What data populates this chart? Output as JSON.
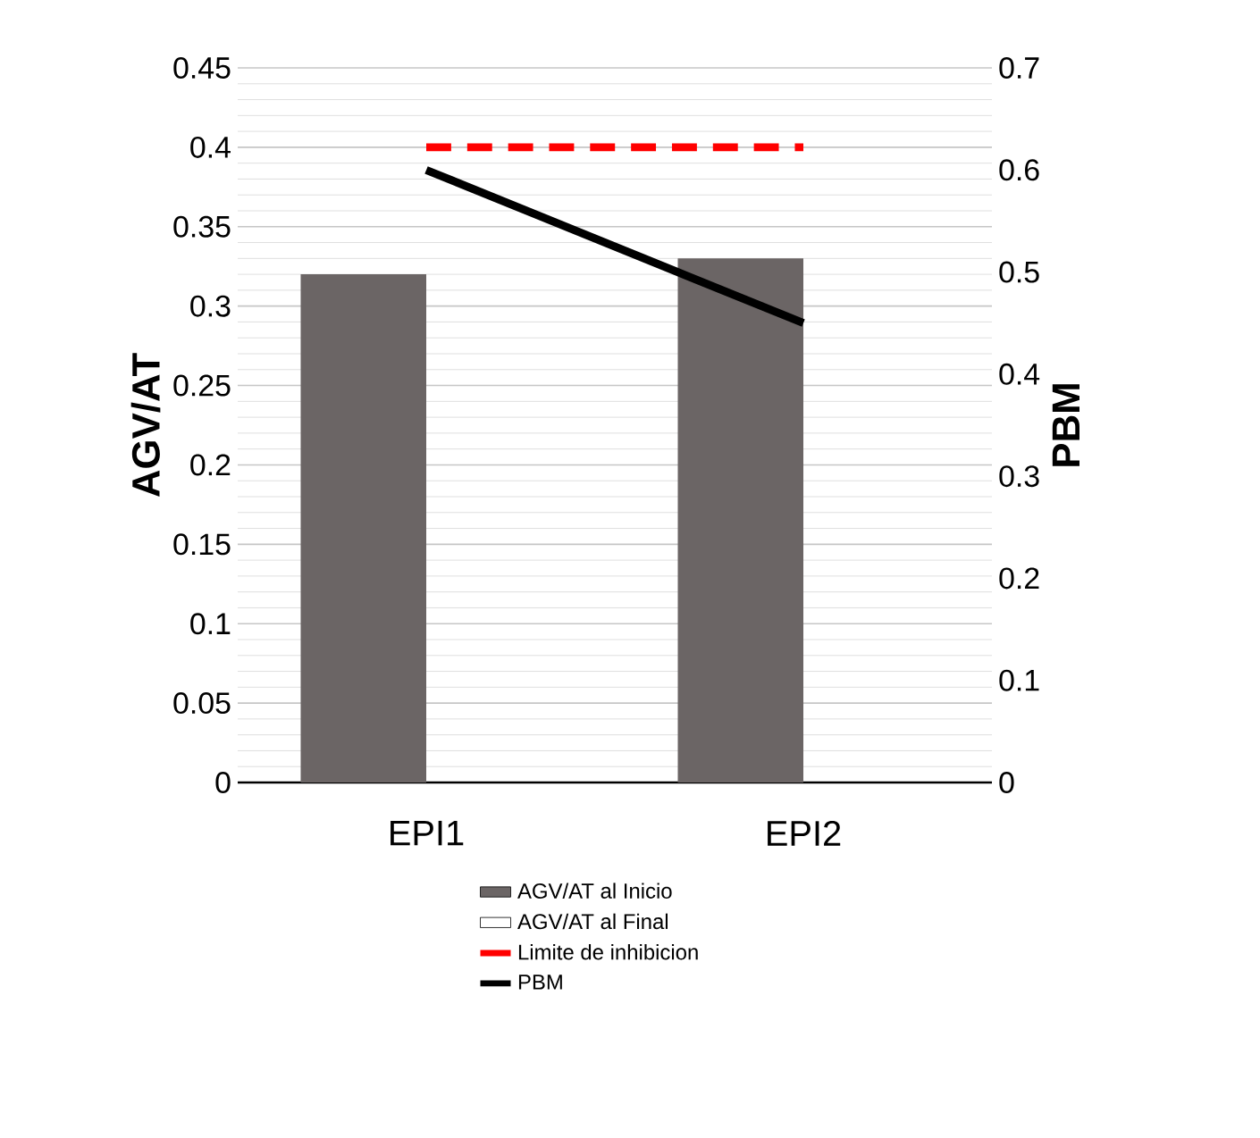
{
  "chart_data": {
    "type": "bar",
    "categories": [
      "EPI1",
      "EPI2"
    ],
    "ylabel": "AGV/AT",
    "y2label": "PBM",
    "ylim": [
      0,
      0.45
    ],
    "yticks": [
      0,
      0.05,
      0.1,
      0.15,
      0.2,
      0.25,
      0.3,
      0.35,
      0.4,
      0.45
    ],
    "y2lim": [
      0,
      0.7
    ],
    "y2ticks": [
      0,
      0.1,
      0.2,
      0.3,
      0.4,
      0.5,
      0.6,
      0.7
    ],
    "grid": "y",
    "legend": "bottom",
    "series": [
      {
        "name": "AGV/AT al Inicio",
        "color": "#6b6565",
        "values": [
          0.32,
          0.33
        ]
      },
      {
        "name": "AGV/AT al Final",
        "color": "#ffffff",
        "values": [
          null,
          null
        ]
      },
      {
        "name": "Limite de inhibicion",
        "type": "line",
        "color": "#ff0000",
        "line_style": "dashed",
        "values": [
          0.4,
          0.4
        ]
      },
      {
        "name": "PBM",
        "type": "line",
        "color": "#000000",
        "axis": "y2",
        "values": [
          0.6,
          0.45
        ]
      }
    ]
  }
}
